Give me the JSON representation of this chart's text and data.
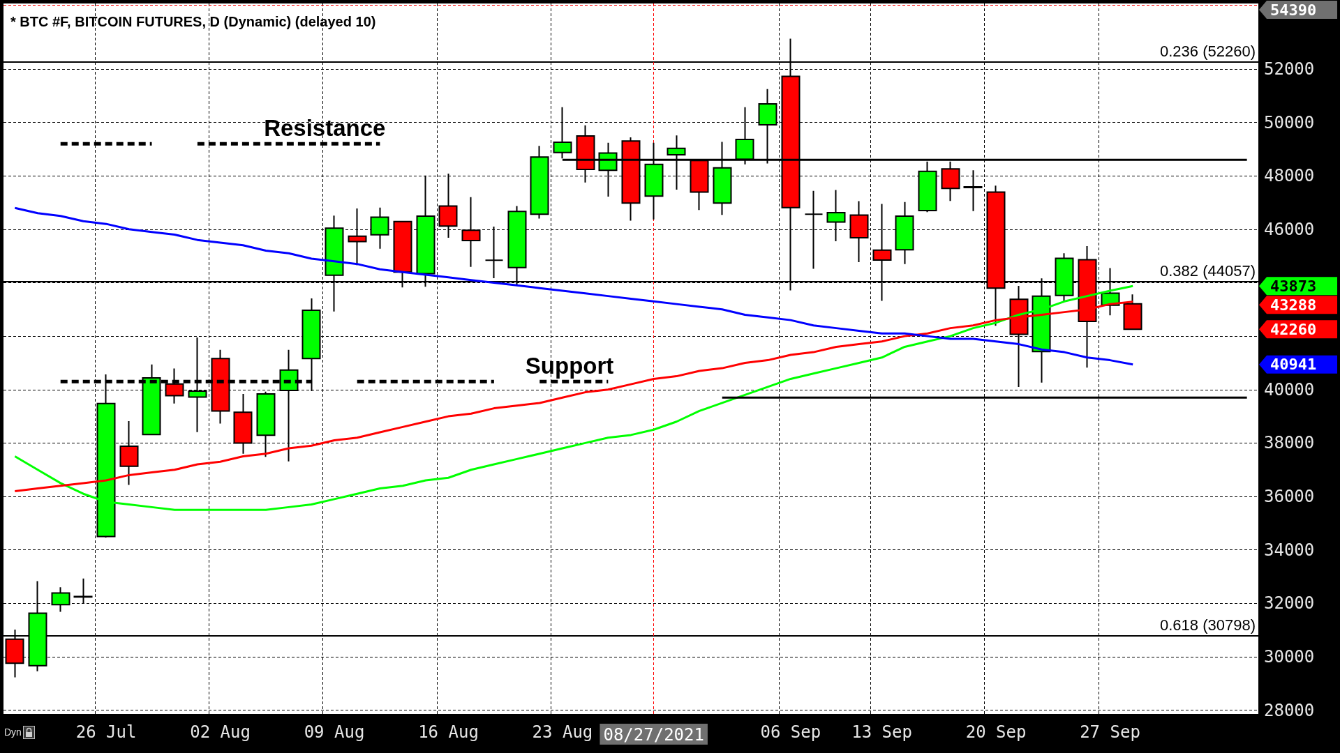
{
  "chart_data": {
    "type": "candlestick",
    "title": "* BTC #F, BITCOIN FUTURES, D (Dynamic) (delayed 10)",
    "categories": [
      null,
      null,
      null,
      null,
      "26 Jul",
      null,
      null,
      null,
      null,
      "02 Aug",
      null,
      null,
      null,
      null,
      "09 Aug",
      null,
      null,
      null,
      null,
      "16 Aug",
      null,
      null,
      null,
      null,
      "23 Aug",
      null,
      null,
      null,
      "08/27/2021",
      null,
      null,
      null,
      null,
      null,
      "06 Sep",
      null,
      null,
      null,
      "13 Sep",
      null,
      null,
      null,
      null,
      "20 Sep",
      null,
      null,
      null,
      null,
      "27 Sep",
      null,
      null,
      null,
      null,
      null,
      null
    ],
    "ohlc": [
      [
        30660,
        31020,
        29230,
        29760
      ],
      [
        29670,
        32830,
        29460,
        31630
      ],
      [
        31950,
        32600,
        31680,
        32390
      ],
      [
        32260,
        32930,
        32010,
        32240
      ],
      [
        34500,
        40570,
        34460,
        39480
      ],
      [
        37880,
        38820,
        36430,
        37130
      ],
      [
        38320,
        40940,
        38320,
        40440
      ],
      [
        40210,
        40790,
        39480,
        39770
      ],
      [
        39720,
        41950,
        38410,
        39940
      ],
      [
        41160,
        41490,
        38730,
        39200
      ],
      [
        39150,
        39840,
        37600,
        38000
      ],
      [
        38290,
        39920,
        37480,
        39840
      ],
      [
        39970,
        41490,
        37310,
        40730
      ],
      [
        41160,
        43410,
        39940,
        42970
      ],
      [
        44280,
        46510,
        42920,
        46040
      ],
      [
        45740,
        46780,
        44660,
        45540
      ],
      [
        45790,
        46810,
        45270,
        46450
      ],
      [
        46290,
        46300,
        43820,
        44400
      ],
      [
        44340,
        48010,
        43850,
        46490
      ],
      [
        46870,
        48080,
        45680,
        46120
      ],
      [
        45960,
        47200,
        44590,
        45580
      ],
      [
        44840,
        46100,
        44170,
        44840
      ],
      [
        44570,
        46870,
        43930,
        46670
      ],
      [
        46560,
        49120,
        46400,
        48700
      ],
      [
        48870,
        50570,
        48650,
        49260
      ],
      [
        49490,
        49890,
        47750,
        48240
      ],
      [
        48210,
        49240,
        47220,
        48850
      ],
      [
        49300,
        49440,
        46320,
        46980
      ],
      [
        47240,
        49240,
        46370,
        48430
      ],
      [
        48790,
        49510,
        47480,
        49030
      ],
      [
        48570,
        48570,
        46720,
        47390
      ],
      [
        46980,
        49270,
        46540,
        48300
      ],
      [
        48620,
        50570,
        48430,
        49360
      ],
      [
        49910,
        51250,
        48460,
        50690
      ],
      [
        51720,
        53130,
        43710,
        46810
      ],
      [
        46560,
        47440,
        44520,
        46560
      ],
      [
        46270,
        47470,
        45550,
        46620
      ],
      [
        46530,
        47050,
        44770,
        45680
      ],
      [
        45220,
        46950,
        43320,
        44850
      ],
      [
        45230,
        47020,
        44700,
        46490
      ],
      [
        46700,
        48530,
        46640,
        48170
      ],
      [
        48260,
        48530,
        47060,
        47530
      ],
      [
        47590,
        48210,
        46680,
        47560
      ],
      [
        47390,
        47630,
        42390,
        43800
      ],
      [
        43380,
        43880,
        40100,
        42070
      ],
      [
        41420,
        44160,
        40260,
        43500
      ],
      [
        43520,
        45100,
        43290,
        44910
      ],
      [
        44860,
        45370,
        40820,
        42550
      ],
      [
        43160,
        44550,
        42780,
        43610
      ],
      [
        43210,
        43560,
        42240,
        42260
      ],
      null,
      null,
      null,
      null,
      null
    ],
    "colors": [
      "#ff0000",
      "#00ff00",
      "#00ff00",
      "#ff0000",
      "#00ff00",
      "#ff0000",
      "#00ff00",
      "#ff0000",
      "#00ff00",
      "#ff0000",
      "#ff0000",
      "#00ff00",
      "#00ff00",
      "#00ff00",
      "#00ff00",
      "#ff0000",
      "#00ff00",
      "#ff0000",
      "#00ff00",
      "#ff0000",
      "#ff0000",
      "#000000",
      "#00ff00",
      "#00ff00",
      "#00ff00",
      "#ff0000",
      "#00ff00",
      "#ff0000",
      "#00ff00",
      "#00ff00",
      "#ff0000",
      "#00ff00",
      "#00ff00",
      "#00ff00",
      "#ff0000",
      "#000000",
      "#00ff00",
      "#ff0000",
      "#ff0000",
      "#00ff00",
      "#00ff00",
      "#ff0000",
      "#ff0000",
      "#ff0000",
      "#ff0000",
      "#00ff00",
      "#00ff00",
      "#ff0000",
      "#00ff00",
      "#ff0000",
      null,
      null,
      null,
      null,
      null
    ],
    "series": [
      {
        "type": "line",
        "color": "#00ff00",
        "line_style": "solid",
        "values": [
          37500,
          37000,
          36500,
          36100,
          35800,
          35700,
          35600,
          35500,
          35500,
          35500,
          35500,
          35500,
          35600,
          35700,
          35900,
          36100,
          36300,
          36400,
          36600,
          36700,
          37000,
          37200,
          37400,
          37600,
          37800,
          38000,
          38200,
          38300,
          38500,
          38800,
          39200,
          39500,
          39800,
          40100,
          40400,
          40600,
          40800,
          41000,
          41200,
          41600,
          41800,
          42000,
          42300,
          42500,
          42800,
          43000,
          43300,
          43500,
          43700,
          43873,
          null,
          null,
          null,
          null,
          null
        ]
      },
      {
        "type": "line",
        "color": "#ff0000",
        "line_style": "solid",
        "values": [
          36200,
          36300,
          36400,
          36500,
          36600,
          36800,
          36900,
          37000,
          37200,
          37300,
          37500,
          37600,
          37800,
          37900,
          38100,
          38200,
          38400,
          38600,
          38800,
          39000,
          39100,
          39300,
          39400,
          39500,
          39700,
          39900,
          40000,
          40200,
          40400,
          40500,
          40700,
          40800,
          41000,
          41100,
          41300,
          41400,
          41600,
          41700,
          41800,
          42000,
          42100,
          42300,
          42400,
          42600,
          42700,
          42800,
          42900,
          43000,
          43200,
          43288,
          null,
          null,
          null,
          null,
          null
        ]
      },
      {
        "type": "line",
        "color": "#0000ff",
        "line_style": "solid",
        "values": [
          46800,
          46600,
          46500,
          46300,
          46200,
          46000,
          45900,
          45800,
          45600,
          45500,
          45400,
          45200,
          45100,
          44900,
          44800,
          44700,
          44500,
          44400,
          44300,
          44200,
          44100,
          44000,
          43900,
          43800,
          43700,
          43600,
          43500,
          43400,
          43300,
          43200,
          43100,
          43000,
          42800,
          42700,
          42600,
          42400,
          42300,
          42200,
          42100,
          42100,
          42000,
          41900,
          41900,
          41800,
          41700,
          41500,
          41400,
          41200,
          41100,
          40941,
          null,
          null,
          null,
          null,
          null
        ]
      },
      {
        "type": "line",
        "name": "Resistance",
        "color": "#000000",
        "line_style": "dashed",
        "values": [
          null,
          null,
          49200,
          49200,
          49200,
          49200,
          49200,
          null,
          49200,
          49200,
          49200,
          49200,
          49200,
          49200,
          49200,
          49200,
          49200,
          null,
          null,
          null,
          null,
          null,
          null,
          null,
          null,
          null,
          null,
          null,
          null,
          null,
          null,
          null,
          null,
          null,
          null,
          null,
          null,
          null,
          null,
          null,
          null,
          null,
          null,
          null,
          null,
          null,
          null,
          null,
          null,
          null,
          null,
          null,
          null,
          null,
          null
        ]
      },
      {
        "type": "line",
        "color": "#000000",
        "line_style": "solid",
        "values": [
          null,
          null,
          null,
          null,
          null,
          null,
          null,
          null,
          null,
          null,
          null,
          null,
          null,
          null,
          null,
          null,
          null,
          null,
          null,
          null,
          null,
          null,
          null,
          null,
          48600,
          48600,
          48600,
          48600,
          48600,
          48600,
          48600,
          48600,
          48600,
          48600,
          48600,
          48600,
          48600,
          48600,
          48600,
          48600,
          48600,
          48600,
          48600,
          48600,
          48600,
          48600,
          48600,
          48600,
          48600,
          48600,
          48600,
          48600,
          48600,
          48600,
          48600
        ]
      },
      {
        "type": "line",
        "name": "Support",
        "color": "#000000",
        "line_style": "dashed",
        "values": [
          null,
          null,
          40300,
          40300,
          40300,
          40300,
          40300,
          40300,
          40300,
          40300,
          40300,
          40300,
          40300,
          40300,
          null,
          40300,
          40300,
          40300,
          40300,
          40300,
          40300,
          40300,
          null,
          40300,
          40300,
          40300,
          40300,
          null,
          null,
          null,
          null,
          null,
          null,
          null,
          null,
          null,
          null,
          null,
          null,
          null,
          null,
          null,
          null,
          null,
          null,
          null,
          null,
          null,
          null,
          null,
          null,
          null,
          null,
          null,
          null
        ]
      },
      {
        "type": "line",
        "color": "#000000",
        "line_style": "solid",
        "values": [
          null,
          null,
          null,
          null,
          null,
          null,
          null,
          null,
          null,
          null,
          null,
          null,
          null,
          null,
          null,
          null,
          null,
          null,
          null,
          null,
          null,
          null,
          null,
          null,
          null,
          null,
          null,
          null,
          null,
          null,
          null,
          39700,
          39700,
          39700,
          39700,
          39700,
          39700,
          39700,
          39700,
          39700,
          39700,
          39700,
          39700,
          39700,
          39700,
          39700,
          39700,
          39700,
          39700,
          39700,
          39700,
          39700,
          39700,
          39700,
          39700
        ]
      }
    ],
    "ylim": [
      27860,
      54450
    ],
    "yticks": [
      28000,
      30000,
      32000,
      34000,
      36000,
      38000,
      40000,
      {
        "value": 42000,
        "label": null
      },
      {
        "value": 44000,
        "label": null
      },
      46000,
      48000,
      50000,
      52000
    ],
    "ref_lines": [
      {
        "axis": "y",
        "value": 52260,
        "label": "0.236 (52260)",
        "color": "#000000",
        "line_style": "solid"
      },
      {
        "axis": "y",
        "value": 44057,
        "label": "0.382 (44057)",
        "color": "#000000",
        "line_style": "solid"
      },
      {
        "axis": "y",
        "value": 30798,
        "label": "0.618 (30798)",
        "color": "#000000",
        "line_style": "solid"
      },
      {
        "axis": "y",
        "value": 54390,
        "label": "54390",
        "color": "#ff0000",
        "line_style": "dashed"
      },
      {
        "axis": "x",
        "value": "08/27/2021",
        "color": "#ff0000",
        "line_style": "dashed"
      }
    ],
    "annotations": [
      "Dyn",
      "43873",
      "43288",
      "42260",
      "40941"
    ],
    "grid": true,
    "marker": "none"
  }
}
